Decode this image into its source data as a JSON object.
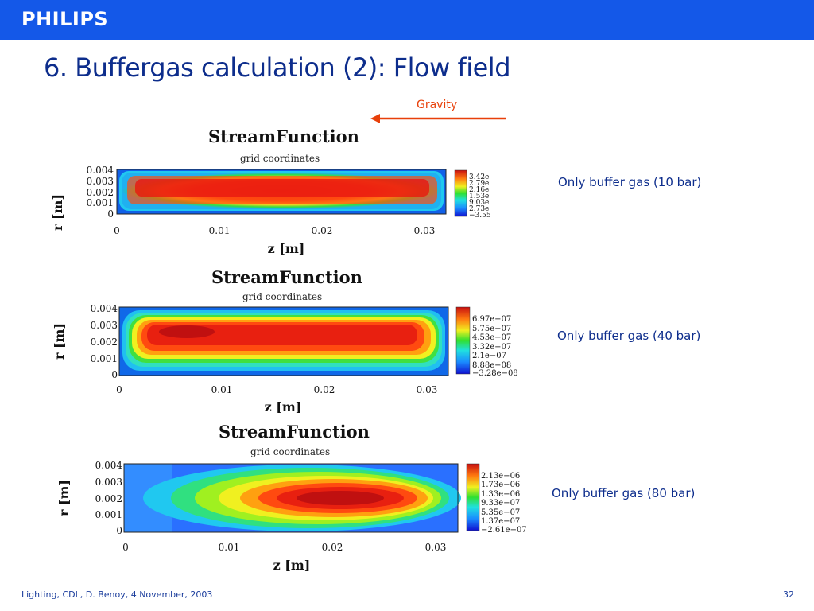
{
  "header": {
    "logo": "PHILIPS",
    "bar_color": "#1458e8"
  },
  "slide": {
    "title": "6. Buffergas calculation (2): Flow field",
    "gravity_label": "Gravity",
    "gravity_color": "#e8400a",
    "footer": "Lighting, CDL, D. Benoy, 4 November, 2003",
    "page_number": "32"
  },
  "plots": [
    {
      "title": "StreamFunction",
      "subtitle": "grid coordinates",
      "ylabel": "r [m]",
      "xlabel": "z [m]",
      "yticks": [
        "0.004",
        "0.003",
        "0.002",
        "0.001",
        "0"
      ],
      "xticks": [
        "0",
        "0.01",
        "0.02",
        "0.03"
      ],
      "legend": [
        "3.42e",
        "2.79e",
        "2.16e",
        "1.53e",
        "9.03e",
        "2.73e",
        "−3.55"
      ],
      "caption": "Only buffer gas (10 bar)"
    },
    {
      "title": "StreamFunction",
      "subtitle": "grid coordinates",
      "ylabel": "r [m]",
      "xlabel": "z [m]",
      "yticks": [
        "0.004",
        "0.003",
        "0.002",
        "0.001",
        "0"
      ],
      "xticks": [
        "0",
        "0.01",
        "0.02",
        "0.03"
      ],
      "legend": [
        "6.97e−07",
        "5.75e−07",
        "4.53e−07",
        "3.32e−07",
        "2.1e−07",
        "8.88e−08",
        "−3.28e−08"
      ],
      "caption": "Only buffer gas (40 bar)"
    },
    {
      "title": "StreamFunction",
      "subtitle": "grid coordinates",
      "ylabel": "r [m]",
      "xlabel": "z [m]",
      "yticks": [
        "0.004",
        "0.003",
        "0.002",
        "0.001",
        "0"
      ],
      "xticks": [
        "0",
        "0.01",
        "0.02",
        "0.03"
      ],
      "legend": [
        "2.13e−06",
        "1.73e−06",
        "1.33e−06",
        "9.33e−07",
        "5.35e−07",
        "1.37e−07",
        "−2.61e−07"
      ],
      "caption": "Only buffer gas (80 bar)"
    }
  ]
}
